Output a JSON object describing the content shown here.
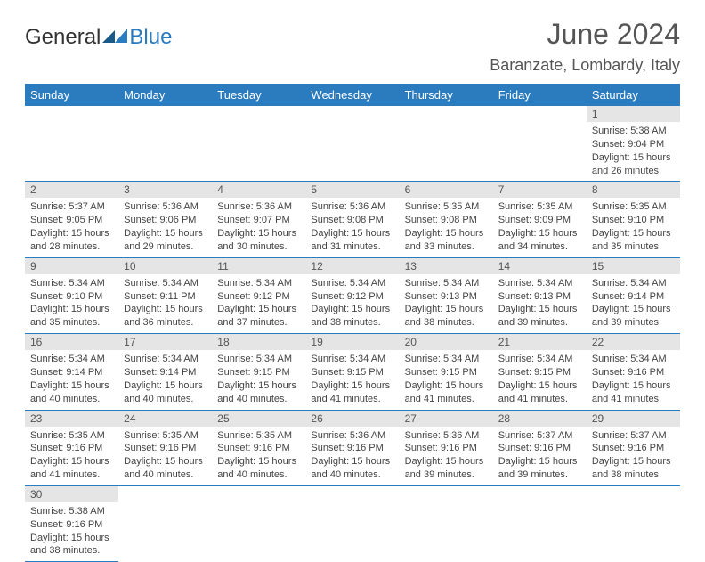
{
  "logo": {
    "text1": "General",
    "text2": "Blue"
  },
  "title": "June 2024",
  "location": "Baranzate, Lombardy, Italy",
  "colors": {
    "accent": "#2b7bbf",
    "daynum_bg": "#e5e5e5",
    "text": "#444"
  },
  "columns": [
    "Sunday",
    "Monday",
    "Tuesday",
    "Wednesday",
    "Thursday",
    "Friday",
    "Saturday"
  ],
  "weeks": [
    [
      null,
      null,
      null,
      null,
      null,
      null,
      {
        "n": "1",
        "sr": "5:38 AM",
        "ss": "9:04 PM",
        "dl": "15 hours and 26 minutes."
      }
    ],
    [
      {
        "n": "2",
        "sr": "5:37 AM",
        "ss": "9:05 PM",
        "dl": "15 hours and 28 minutes."
      },
      {
        "n": "3",
        "sr": "5:36 AM",
        "ss": "9:06 PM",
        "dl": "15 hours and 29 minutes."
      },
      {
        "n": "4",
        "sr": "5:36 AM",
        "ss": "9:07 PM",
        "dl": "15 hours and 30 minutes."
      },
      {
        "n": "5",
        "sr": "5:36 AM",
        "ss": "9:08 PM",
        "dl": "15 hours and 31 minutes."
      },
      {
        "n": "6",
        "sr": "5:35 AM",
        "ss": "9:08 PM",
        "dl": "15 hours and 33 minutes."
      },
      {
        "n": "7",
        "sr": "5:35 AM",
        "ss": "9:09 PM",
        "dl": "15 hours and 34 minutes."
      },
      {
        "n": "8",
        "sr": "5:35 AM",
        "ss": "9:10 PM",
        "dl": "15 hours and 35 minutes."
      }
    ],
    [
      {
        "n": "9",
        "sr": "5:34 AM",
        "ss": "9:10 PM",
        "dl": "15 hours and 35 minutes."
      },
      {
        "n": "10",
        "sr": "5:34 AM",
        "ss": "9:11 PM",
        "dl": "15 hours and 36 minutes."
      },
      {
        "n": "11",
        "sr": "5:34 AM",
        "ss": "9:12 PM",
        "dl": "15 hours and 37 minutes."
      },
      {
        "n": "12",
        "sr": "5:34 AM",
        "ss": "9:12 PM",
        "dl": "15 hours and 38 minutes."
      },
      {
        "n": "13",
        "sr": "5:34 AM",
        "ss": "9:13 PM",
        "dl": "15 hours and 38 minutes."
      },
      {
        "n": "14",
        "sr": "5:34 AM",
        "ss": "9:13 PM",
        "dl": "15 hours and 39 minutes."
      },
      {
        "n": "15",
        "sr": "5:34 AM",
        "ss": "9:14 PM",
        "dl": "15 hours and 39 minutes."
      }
    ],
    [
      {
        "n": "16",
        "sr": "5:34 AM",
        "ss": "9:14 PM",
        "dl": "15 hours and 40 minutes."
      },
      {
        "n": "17",
        "sr": "5:34 AM",
        "ss": "9:14 PM",
        "dl": "15 hours and 40 minutes."
      },
      {
        "n": "18",
        "sr": "5:34 AM",
        "ss": "9:15 PM",
        "dl": "15 hours and 40 minutes."
      },
      {
        "n": "19",
        "sr": "5:34 AM",
        "ss": "9:15 PM",
        "dl": "15 hours and 41 minutes."
      },
      {
        "n": "20",
        "sr": "5:34 AM",
        "ss": "9:15 PM",
        "dl": "15 hours and 41 minutes."
      },
      {
        "n": "21",
        "sr": "5:34 AM",
        "ss": "9:15 PM",
        "dl": "15 hours and 41 minutes."
      },
      {
        "n": "22",
        "sr": "5:34 AM",
        "ss": "9:16 PM",
        "dl": "15 hours and 41 minutes."
      }
    ],
    [
      {
        "n": "23",
        "sr": "5:35 AM",
        "ss": "9:16 PM",
        "dl": "15 hours and 41 minutes."
      },
      {
        "n": "24",
        "sr": "5:35 AM",
        "ss": "9:16 PM",
        "dl": "15 hours and 40 minutes."
      },
      {
        "n": "25",
        "sr": "5:35 AM",
        "ss": "9:16 PM",
        "dl": "15 hours and 40 minutes."
      },
      {
        "n": "26",
        "sr": "5:36 AM",
        "ss": "9:16 PM",
        "dl": "15 hours and 40 minutes."
      },
      {
        "n": "27",
        "sr": "5:36 AM",
        "ss": "9:16 PM",
        "dl": "15 hours and 39 minutes."
      },
      {
        "n": "28",
        "sr": "5:37 AM",
        "ss": "9:16 PM",
        "dl": "15 hours and 39 minutes."
      },
      {
        "n": "29",
        "sr": "5:37 AM",
        "ss": "9:16 PM",
        "dl": "15 hours and 38 minutes."
      }
    ],
    [
      {
        "n": "30",
        "sr": "5:38 AM",
        "ss": "9:16 PM",
        "dl": "15 hours and 38 minutes."
      },
      null,
      null,
      null,
      null,
      null,
      null
    ]
  ],
  "labels": {
    "sunrise": "Sunrise:",
    "sunset": "Sunset:",
    "daylight": "Daylight:"
  }
}
